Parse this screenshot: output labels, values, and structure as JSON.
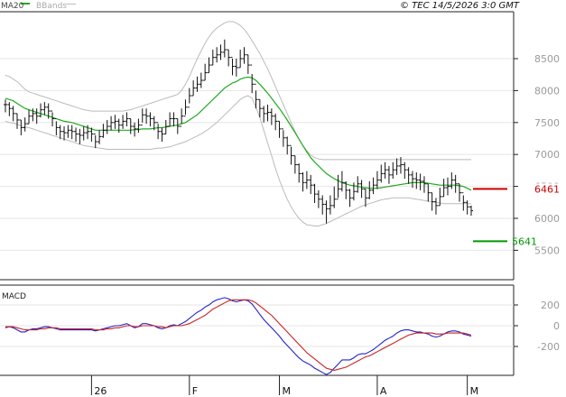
{
  "header": {
    "legend_ma20": "MA20",
    "legend_bbands": "BBands",
    "copyright": "© TEC 14/5/2026 3:0 GMT"
  },
  "colors": {
    "price": "#111111",
    "ma20": "#22aa22",
    "bbands": "#bbbbbb",
    "resistance": "#cc0000",
    "support": "#009900",
    "macd": "#2222cc",
    "signal": "#cc2222",
    "axis": "#222222"
  },
  "macd_panel": {
    "title": "MACD"
  },
  "chart_data": [
    {
      "type": "ohlc",
      "name": "price-panel",
      "xlabels": [
        "26",
        "F",
        "M",
        "A",
        "M"
      ],
      "xlabel_bars": [
        22,
        47,
        70,
        95,
        118
      ],
      "y_ticks": [
        5500,
        6000,
        6500,
        7000,
        7500,
        8000,
        8500
      ],
      "y_tick_labels": [
        "5500",
        "6000",
        "6500",
        "7000",
        "7500",
        "8000",
        "8500"
      ],
      "ylim": [
        5000,
        9000
      ],
      "levels": [
        {
          "label": "6461",
          "value": 6461,
          "role": "resistance"
        },
        {
          "label": "5641",
          "value": 5641,
          "role": "support"
        }
      ],
      "close": [
        7780,
        7720,
        7640,
        7540,
        7420,
        7480,
        7600,
        7640,
        7600,
        7700,
        7740,
        7680,
        7560,
        7420,
        7360,
        7340,
        7380,
        7360,
        7320,
        7300,
        7340,
        7360,
        7320,
        7200,
        7280,
        7380,
        7440,
        7500,
        7520,
        7460,
        7520,
        7560,
        7440,
        7400,
        7460,
        7620,
        7600,
        7560,
        7500,
        7360,
        7320,
        7440,
        7560,
        7560,
        7440,
        7600,
        7740,
        7920,
        8040,
        8100,
        8160,
        8280,
        8400,
        8520,
        8560,
        8600,
        8640,
        8520,
        8380,
        8360,
        8500,
        8560,
        8400,
        8100,
        7860,
        7720,
        7640,
        7660,
        7600,
        7520,
        7400,
        7260,
        7140,
        6980,
        6840,
        6700,
        6560,
        6600,
        6520,
        6380,
        6300,
        6220,
        6150,
        6200,
        6300,
        6460,
        6560,
        6440,
        6320,
        6420,
        6540,
        6460,
        6320,
        6440,
        6520,
        6600,
        6700,
        6760,
        6680,
        6760,
        6820,
        6840,
        6760,
        6680,
        6620,
        6600,
        6580,
        6540,
        6400,
        6260,
        6200,
        6340,
        6480,
        6500,
        6600,
        6540,
        6400,
        6250,
        6180,
        6120
      ],
      "high": [
        7860,
        7820,
        7760,
        7640,
        7540,
        7580,
        7700,
        7720,
        7720,
        7800,
        7820,
        7800,
        7660,
        7520,
        7460,
        7440,
        7460,
        7460,
        7420,
        7400,
        7440,
        7460,
        7420,
        7300,
        7380,
        7480,
        7540,
        7600,
        7620,
        7560,
        7620,
        7660,
        7560,
        7500,
        7560,
        7720,
        7720,
        7660,
        7600,
        7480,
        7420,
        7540,
        7660,
        7660,
        7560,
        7720,
        7860,
        8040,
        8160,
        8220,
        8280,
        8420,
        8520,
        8640,
        8680,
        8720,
        8800,
        8640,
        8500,
        8500,
        8640,
        8680,
        8560,
        8260,
        8000,
        7860,
        7760,
        7780,
        7720,
        7640,
        7520,
        7380,
        7280,
        7120,
        6980,
        6860,
        6720,
        6740,
        6680,
        6540,
        6440,
        6360,
        6280,
        6360,
        6500,
        6680,
        6740,
        6580,
        6460,
        6560,
        6660,
        6600,
        6460,
        6580,
        6640,
        6740,
        6840,
        6880,
        6820,
        6880,
        6940,
        6960,
        6880,
        6800,
        6740,
        6720,
        6700,
        6660,
        6540,
        6400,
        6320,
        6480,
        6620,
        6640,
        6720,
        6680,
        6540,
        6360,
        6280,
        6200
      ],
      "low": [
        7660,
        7600,
        7520,
        7400,
        7300,
        7360,
        7480,
        7520,
        7480,
        7580,
        7620,
        7560,
        7440,
        7300,
        7240,
        7220,
        7260,
        7240,
        7200,
        7160,
        7220,
        7240,
        7200,
        7100,
        7160,
        7260,
        7320,
        7380,
        7400,
        7340,
        7400,
        7440,
        7320,
        7280,
        7340,
        7500,
        7480,
        7440,
        7380,
        7240,
        7200,
        7320,
        7440,
        7440,
        7320,
        7480,
        7620,
        7800,
        7920,
        7980,
        8040,
        8160,
        8280,
        8400,
        8440,
        8480,
        8520,
        8380,
        8240,
        8220,
        8360,
        8420,
        8260,
        7960,
        7720,
        7580,
        7500,
        7520,
        7460,
        7380,
        7260,
        7120,
        7000,
        6840,
        6700,
        6560,
        6420,
        6460,
        6380,
        6240,
        6160,
        6060,
        5920,
        6060,
        6160,
        6320,
        6420,
        6300,
        6180,
        6280,
        6400,
        6320,
        6180,
        6300,
        6380,
        6460,
        6560,
        6620,
        6540,
        6620,
        6680,
        6700,
        6620,
        6540,
        6480,
        6460,
        6440,
        6400,
        6260,
        6120,
        6060,
        6200,
        6340,
        6360,
        6460,
        6400,
        6260,
        6120,
        6060,
        6040
      ],
      "ma20": [
        7880,
        7860,
        7840,
        7800,
        7760,
        7720,
        7700,
        7680,
        7660,
        7640,
        7620,
        7600,
        7580,
        7560,
        7540,
        7520,
        7510,
        7500,
        7480,
        7460,
        7440,
        7420,
        7400,
        7380,
        7380,
        7380,
        7380,
        7380,
        7380,
        7380,
        7380,
        7380,
        7380,
        7390,
        7390,
        7400,
        7400,
        7400,
        7410,
        7420,
        7420,
        7430,
        7440,
        7450,
        7460,
        7480,
        7500,
        7540,
        7580,
        7620,
        7680,
        7740,
        7800,
        7860,
        7920,
        7980,
        8040,
        8080,
        8120,
        8140,
        8180,
        8200,
        8210,
        8200,
        8160,
        8100,
        8030,
        7960,
        7880,
        7800,
        7720,
        7630,
        7540,
        7440,
        7340,
        7240,
        7140,
        7040,
        6950,
        6880,
        6820,
        6760,
        6700,
        6660,
        6620,
        6590,
        6560,
        6540,
        6520,
        6510,
        6500,
        6490,
        6480,
        6470,
        6470,
        6470,
        6480,
        6490,
        6500,
        6510,
        6520,
        6530,
        6540,
        6550,
        6560,
        6560,
        6560,
        6560,
        6550,
        6540,
        6530,
        6520,
        6520,
        6520,
        6520,
        6520,
        6510,
        6500,
        6470,
        6440
      ],
      "bb_upper": [
        8240,
        8220,
        8180,
        8140,
        8080,
        8020,
        7980,
        7960,
        7940,
        7920,
        7900,
        7880,
        7860,
        7840,
        7820,
        7800,
        7780,
        7760,
        7740,
        7720,
        7700,
        7690,
        7680,
        7680,
        7680,
        7680,
        7680,
        7680,
        7680,
        7680,
        7680,
        7690,
        7700,
        7720,
        7740,
        7760,
        7780,
        7800,
        7820,
        7840,
        7860,
        7880,
        7900,
        7920,
        7940,
        8000,
        8100,
        8220,
        8360,
        8500,
        8620,
        8740,
        8840,
        8920,
        8980,
        9020,
        9060,
        9080,
        9080,
        9060,
        9020,
        8960,
        8880,
        8780,
        8680,
        8580,
        8460,
        8340,
        8200,
        8060,
        7920,
        7780,
        7640,
        7500,
        7360,
        7240,
        7140,
        7060,
        6990,
        6950,
        6930,
        6920,
        6920,
        6920,
        6920,
        6920,
        6920,
        6920,
        6920,
        6920,
        6920,
        6920,
        6920,
        6920,
        6920,
        6920,
        6920,
        6920,
        6920,
        6920,
        6920,
        6920,
        6920,
        6920,
        6920,
        6920,
        6920,
        6920,
        6920,
        6920,
        6920,
        6920,
        6920,
        6920,
        6920,
        6920,
        6920,
        6920,
        6920,
        6920
      ],
      "bb_lower": [
        7520,
        7500,
        7490,
        7470,
        7450,
        7430,
        7420,
        7400,
        7380,
        7360,
        7340,
        7320,
        7300,
        7280,
        7260,
        7240,
        7220,
        7200,
        7180,
        7160,
        7140,
        7130,
        7120,
        7110,
        7100,
        7090,
        7080,
        7080,
        7080,
        7080,
        7080,
        7080,
        7080,
        7080,
        7080,
        7080,
        7080,
        7080,
        7090,
        7100,
        7100,
        7110,
        7120,
        7140,
        7160,
        7180,
        7200,
        7230,
        7260,
        7290,
        7320,
        7360,
        7400,
        7450,
        7500,
        7560,
        7620,
        7680,
        7740,
        7800,
        7860,
        7900,
        7920,
        7880,
        7740,
        7580,
        7380,
        7180,
        6980,
        6780,
        6600,
        6440,
        6300,
        6180,
        6080,
        6000,
        5940,
        5900,
        5890,
        5880,
        5880,
        5900,
        5920,
        5950,
        5980,
        6010,
        6040,
        6070,
        6100,
        6130,
        6160,
        6190,
        6210,
        6230,
        6250,
        6270,
        6290,
        6300,
        6310,
        6320,
        6320,
        6320,
        6320,
        6320,
        6310,
        6300,
        6290,
        6280,
        6270,
        6260,
        6250,
        6240,
        6230,
        6230,
        6230,
        6230,
        6230,
        6230,
        6230,
        6230
      ]
    },
    {
      "type": "line",
      "name": "macd-panel",
      "title": "MACD",
      "y_ticks": [
        200,
        0,
        -200
      ],
      "y_tick_labels": [
        "200",
        "0",
        "-200"
      ],
      "ylim": [
        -500,
        350
      ],
      "series": [
        {
          "name": "MACD",
          "values": [
            -20,
            -10,
            -20,
            -40,
            -60,
            -60,
            -40,
            -30,
            -30,
            -20,
            -10,
            -10,
            -20,
            -30,
            -40,
            -40,
            -40,
            -40,
            -40,
            -40,
            -40,
            -40,
            -40,
            -50,
            -40,
            -30,
            -20,
            -10,
            0,
            0,
            10,
            20,
            0,
            -20,
            -10,
            20,
            20,
            10,
            0,
            -20,
            -30,
            -20,
            0,
            10,
            0,
            20,
            40,
            70,
            100,
            130,
            150,
            180,
            200,
            230,
            250,
            260,
            270,
            260,
            240,
            230,
            240,
            250,
            240,
            210,
            160,
            110,
            60,
            20,
            -20,
            -60,
            -100,
            -150,
            -190,
            -230,
            -270,
            -310,
            -340,
            -360,
            -380,
            -410,
            -430,
            -450,
            -470,
            -450,
            -410,
            -370,
            -330,
            -330,
            -330,
            -310,
            -280,
            -270,
            -270,
            -250,
            -230,
            -200,
            -170,
            -140,
            -120,
            -100,
            -70,
            -50,
            -40,
            -40,
            -50,
            -60,
            -60,
            -70,
            -80,
            -100,
            -110,
            -100,
            -80,
            -60,
            -50,
            -50,
            -60,
            -80,
            -90,
            -100
          ]
        },
        {
          "name": "Signal",
          "values": [
            -10,
            -10,
            -10,
            -20,
            -30,
            -40,
            -40,
            -40,
            -40,
            -30,
            -30,
            -20,
            -20,
            -20,
            -30,
            -30,
            -30,
            -30,
            -30,
            -30,
            -30,
            -30,
            -30,
            -40,
            -40,
            -40,
            -30,
            -30,
            -20,
            -20,
            -10,
            0,
            0,
            -10,
            -10,
            0,
            0,
            0,
            0,
            -10,
            -10,
            -20,
            -10,
            0,
            0,
            0,
            10,
            20,
            40,
            60,
            80,
            100,
            130,
            160,
            180,
            200,
            220,
            240,
            250,
            250,
            250,
            250,
            250,
            240,
            220,
            190,
            160,
            130,
            100,
            60,
            20,
            -20,
            -60,
            -100,
            -140,
            -180,
            -220,
            -260,
            -290,
            -320,
            -350,
            -380,
            -410,
            -420,
            -430,
            -420,
            -410,
            -400,
            -380,
            -360,
            -340,
            -320,
            -300,
            -290,
            -270,
            -250,
            -230,
            -210,
            -190,
            -170,
            -150,
            -130,
            -110,
            -90,
            -80,
            -70,
            -70,
            -70,
            -70,
            -70,
            -80,
            -80,
            -80,
            -70,
            -70,
            -70,
            -70,
            -70,
            -80,
            -90
          ]
        }
      ]
    }
  ]
}
